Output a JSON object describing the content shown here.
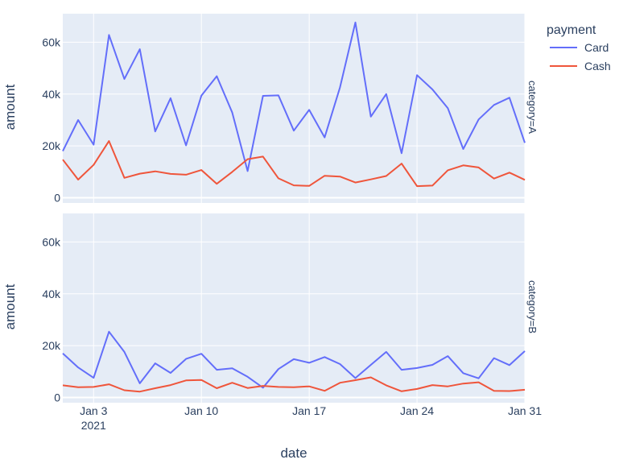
{
  "chart_data": {
    "type": "line",
    "x_axis_label": "date",
    "y_axis_label": "amount",
    "legend": {
      "title": "payment",
      "placement": "top-right",
      "entries": [
        "Card",
        "Cash"
      ]
    },
    "x_ticks": [
      {
        "date": "2021-01-03",
        "label": "Jan 3",
        "sublabel": "2021"
      },
      {
        "date": "2021-01-10",
        "label": "Jan 10",
        "sublabel": ""
      },
      {
        "date": "2021-01-17",
        "label": "Jan 17",
        "sublabel": ""
      },
      {
        "date": "2021-01-24",
        "label": "Jan 24",
        "sublabel": ""
      },
      {
        "date": "2021-01-31",
        "label": "Jan 31",
        "sublabel": ""
      }
    ],
    "x_range": [
      "2021-01-01",
      "2021-01-31"
    ],
    "y_ticks": [
      {
        "value": 0,
        "label": "0"
      },
      {
        "value": 20000,
        "label": "20k"
      },
      {
        "value": 40000,
        "label": "40k"
      },
      {
        "value": 60000,
        "label": "60k"
      }
    ],
    "ylim": [
      -2000,
      71000
    ],
    "grid": true,
    "colors": {
      "Card": "#636efa",
      "Cash": "#ef553b",
      "plot_bg": "#e5ecf6",
      "grid": "#ffffff",
      "text": "#2a3f5f"
    },
    "x": [
      "2021-01-01",
      "2021-01-02",
      "2021-01-03",
      "2021-01-04",
      "2021-01-05",
      "2021-01-06",
      "2021-01-07",
      "2021-01-08",
      "2021-01-09",
      "2021-01-10",
      "2021-01-11",
      "2021-01-12",
      "2021-01-13",
      "2021-01-14",
      "2021-01-15",
      "2021-01-16",
      "2021-01-17",
      "2021-01-18",
      "2021-01-19",
      "2021-01-20",
      "2021-01-21",
      "2021-01-22",
      "2021-01-23",
      "2021-01-24",
      "2021-01-25",
      "2021-01-26",
      "2021-01-27",
      "2021-01-28",
      "2021-01-29",
      "2021-01-30",
      "2021-01-31"
    ],
    "facets": [
      {
        "label": "category=A",
        "series": [
          {
            "name": "Card",
            "values": [
              18000,
              30000,
              20500,
              62800,
              45800,
              57300,
              25600,
              38400,
              20200,
              39400,
              46900,
              32900,
              10300,
              39300,
              39500,
              25900,
              33900,
              23300,
              42600,
              67600,
              31300,
              40000,
              17200,
              47300,
              41800,
              34600,
              18800,
              30200,
              35800,
              38600,
              21200
            ]
          },
          {
            "name": "Cash",
            "values": [
              14700,
              7000,
              12700,
              21900,
              7700,
              9300,
              10200,
              9200,
              8900,
              10700,
              5400,
              10000,
              14900,
              15900,
              7500,
              4800,
              4600,
              8500,
              8200,
              5900,
              7100,
              8400,
              13200,
              4500,
              4700,
              10600,
              12500,
              11700,
              7400,
              9700,
              6900
            ]
          }
        ]
      },
      {
        "label": "category=B",
        "series": [
          {
            "name": "Card",
            "values": [
              17000,
              11600,
              7600,
              25400,
              17600,
              5500,
              13200,
              9500,
              14900,
              16900,
              10700,
              11300,
              8000,
              3800,
              11000,
              14800,
              13400,
              15600,
              12900,
              7500,
              12600,
              17600,
              10700,
              11400,
              12600,
              16000,
              9400,
              7400,
              15200,
              12500,
              17900
            ]
          },
          {
            "name": "Cash",
            "values": [
              4700,
              4000,
              4100,
              5100,
              2800,
              2300,
              3600,
              4800,
              6600,
              6800,
              3600,
              5700,
              3700,
              4500,
              4100,
              4000,
              4300,
              2600,
              5700,
              6700,
              7800,
              4700,
              2400,
              3300,
              4800,
              4300,
              5400,
              5900,
              2600,
              2500,
              3000
            ]
          }
        ]
      }
    ]
  }
}
